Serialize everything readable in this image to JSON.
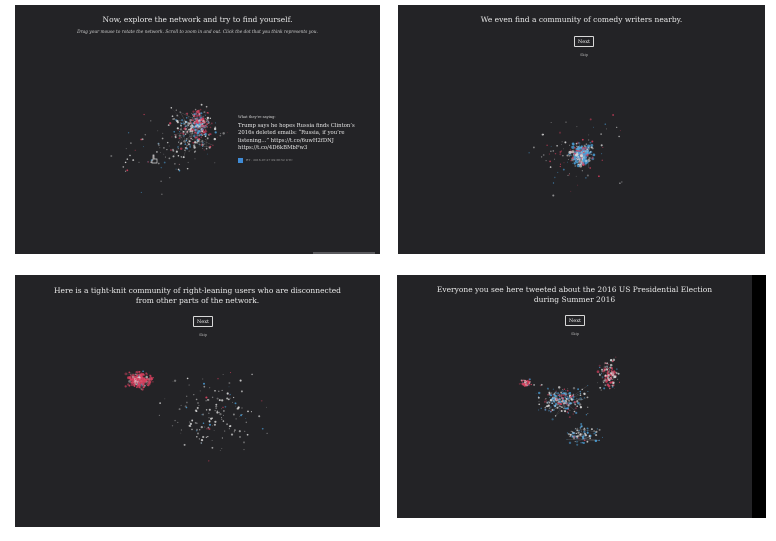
{
  "panels": [
    {
      "title": "Now, explore the network and try to find yourself.",
      "subtitle": "Drag your mouse to rotate the network. Scroll to zoom in and out. Click the dot that you think represents you.",
      "sidebar": {
        "heading": "What they're saying:",
        "tweet": "Trump says he hopes Russia finds Clinton’s 2016s deleted emails: “Russia, if you’re listening...” https://t.co/6uwH2fDNJ https://t.co/4D6kBMbFw3",
        "meta": "RT · 2016-07-27 09:38:52 UTC"
      }
    },
    {
      "title": "We even find a community of comedy writers nearby.",
      "next_label": "Next",
      "skip_label": "Skip"
    },
    {
      "title": "Here is a tight-knit community of right-leaning users who are disconnected from other parts of the network.",
      "next_label": "Next",
      "skip_label": "Skip"
    },
    {
      "title": "Everyone you see here tweeted about the 2016 US Presidential Election during Summer 2016",
      "next_label": "Next",
      "skip_label": "Skip"
    }
  ],
  "colors": {
    "background": "#232326",
    "right_leaning": "#d8405e",
    "left_leaning": "#4a9fd8",
    "neutral": "#d7d7d7"
  }
}
